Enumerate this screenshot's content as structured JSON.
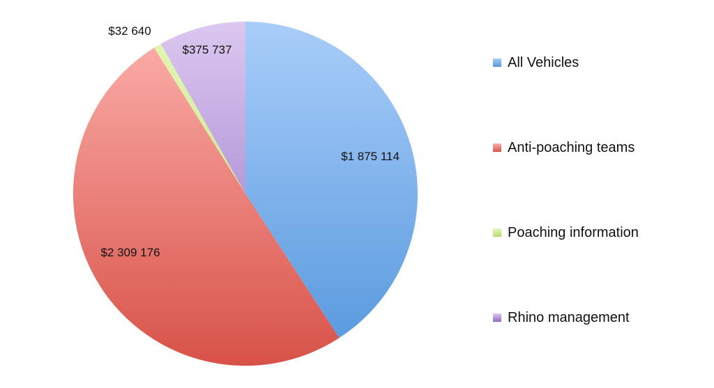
{
  "chart_data": {
    "type": "pie",
    "title": "",
    "slices": [
      {
        "label": "All Vehicles",
        "value": 1875114,
        "value_label": "$1 875 114",
        "color_top": "#a9cdf9",
        "color_bottom": "#5497dd"
      },
      {
        "label": "Anti-poaching teams",
        "value": 2309176,
        "value_label": "$2 309 176",
        "color_top": "#fdb1ad",
        "color_bottom": "#d75248"
      },
      {
        "label": "Poaching information",
        "value": 32640,
        "value_label": "$32 640",
        "color_top": "#e6f7b8",
        "color_bottom": "#b5de6e"
      },
      {
        "label": "Rhino management",
        "value": 375737,
        "value_label": "$375 737",
        "color_top": "#dcc8f0",
        "color_bottom": "#8f6bc3"
      }
    ],
    "start_angle": "12 o'clock",
    "direction": "clockwise",
    "legend_position": "right"
  }
}
